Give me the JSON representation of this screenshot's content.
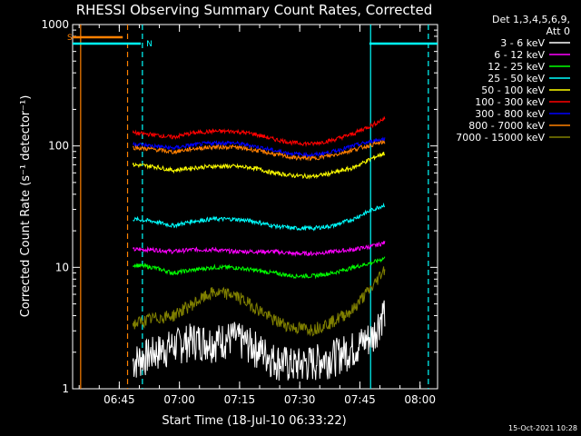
{
  "chart_data": {
    "type": "line",
    "title": "RHESSI Observing Summary Count Rates, Corrected",
    "xlabel": "Start Time (18-Jul-10 06:33:22)",
    "ylabel": "Corrected Count Rate (s⁻¹ detector⁻¹)",
    "yscale": "log",
    "ylim": [
      1,
      1000
    ],
    "xlim_minutes_after_start": [
      0,
      91
    ],
    "y_tick_labels": [
      "1",
      "10",
      "100",
      "1000"
    ],
    "x_tick_labels": [
      "06:45",
      "07:00",
      "07:15",
      "07:30",
      "07:45",
      "08:00"
    ],
    "x_tick_minutes_after_start": [
      11.63,
      26.63,
      41.63,
      56.63,
      71.63,
      86.63
    ],
    "legend_header": [
      "Det 1,3,4,5,6,9,",
      "Att 0"
    ],
    "legend_placement": "right",
    "flags": [
      {
        "label": "S",
        "color": "#ff8000",
        "start": 0,
        "end": 12.5
      },
      {
        "label": "N",
        "color": "#00ffff",
        "start": 0,
        "end": 17,
        "start2": 74,
        "end2": 91
      }
    ],
    "boundary_lines": [
      {
        "color": "#ff8000",
        "style": "solid",
        "x": 2
      },
      {
        "color": "#ff8000",
        "style": "dashed",
        "x": 13.7
      },
      {
        "color": "#00ffff",
        "style": "dashed",
        "x": 17.4
      },
      {
        "color": "#00ffff",
        "style": "solid",
        "x": 74.3
      },
      {
        "color": "#00ffff",
        "style": "dashed",
        "x": 88.7
      }
    ],
    "series_time_minutes": [
      15,
      20,
      25,
      30,
      35,
      40,
      45,
      50,
      55,
      60,
      65,
      70,
      75,
      78
    ],
    "series": [
      {
        "name": "3 - 6 keV",
        "color": "#ffffff",
        "values": [
          1.7,
          2.0,
          2.3,
          2.6,
          2.5,
          2.7,
          2.3,
          1.8,
          1.6,
          1.7,
          1.9,
          2.2,
          2.8,
          4.7
        ]
      },
      {
        "name": "6 - 12 keV",
        "color": "#ff00ff",
        "values": [
          14,
          14,
          13.5,
          14,
          14,
          13.5,
          13.5,
          13.5,
          13,
          13,
          13.5,
          14,
          15,
          16
        ]
      },
      {
        "name": "12 - 25 keV",
        "color": "#00ff00",
        "values": [
          10.5,
          10,
          9,
          9.5,
          10,
          10,
          9.5,
          9,
          8.5,
          8.5,
          9,
          10,
          11,
          12
        ]
      },
      {
        "name": "25 - 50 keV",
        "color": "#00ffff",
        "values": [
          25,
          24,
          22,
          24,
          25,
          25,
          24,
          22,
          21,
          21,
          22,
          25,
          30,
          33
        ]
      },
      {
        "name": "50 - 100 keV",
        "color": "#ffff00",
        "values": [
          70,
          68,
          63,
          66,
          68,
          68,
          66,
          60,
          57,
          56,
          60,
          66,
          80,
          88
        ]
      },
      {
        "name": "100 - 300 keV",
        "color": "#ff0000",
        "values": [
          128,
          124,
          118,
          128,
          132,
          132,
          126,
          114,
          106,
          104,
          112,
          126,
          150,
          170
        ]
      },
      {
        "name": "300 - 800 keV",
        "color": "#0000ff",
        "values": [
          104,
          100,
          96,
          102,
          106,
          106,
          100,
          92,
          86,
          84,
          90,
          100,
          110,
          115
        ]
      },
      {
        "name": "800 - 7000 keV",
        "color": "#ff8000",
        "values": [
          97,
          94,
          89,
          95,
          98,
          98,
          93,
          86,
          80,
          79,
          84,
          93,
          103,
          108
        ]
      },
      {
        "name": "7000 - 15000 keV",
        "color": "#808000",
        "values": [
          3.4,
          3.8,
          4.0,
          5.0,
          6.2,
          6.0,
          4.8,
          3.7,
          3.2,
          3.1,
          3.6,
          4.5,
          7.0,
          10.0
        ]
      }
    ]
  },
  "footer": {
    "timestamp": "15-Oct-2021 10:28"
  }
}
